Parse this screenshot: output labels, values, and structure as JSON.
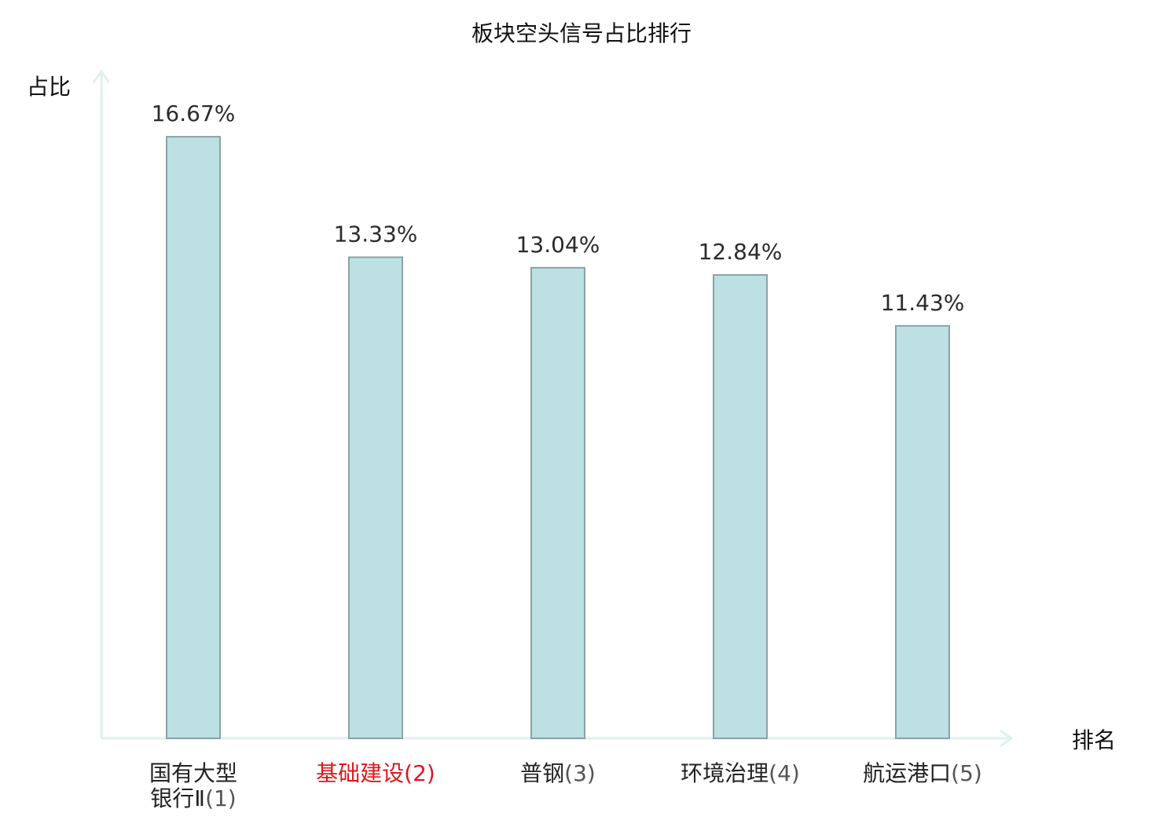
{
  "chart_data": {
    "type": "bar",
    "title": "板块空头信号占比排行",
    "xlabel": "排名",
    "ylabel": "占比",
    "categories": [
      {
        "name_lines": [
          "国有大型",
          "银行Ⅱ"
        ],
        "rank": "(1)",
        "highlight": false
      },
      {
        "name_lines": [
          "基础建设"
        ],
        "rank": "(2)",
        "highlight": true
      },
      {
        "name_lines": [
          "普钢"
        ],
        "rank": "(3)",
        "highlight": false
      },
      {
        "name_lines": [
          "环境治理"
        ],
        "rank": "(4)",
        "highlight": false
      },
      {
        "name_lines": [
          "航运港口"
        ],
        "rank": "(5)",
        "highlight": false
      }
    ],
    "values": [
      16.67,
      13.33,
      13.04,
      12.84,
      11.43
    ],
    "value_labels": [
      "16.67%",
      "13.33%",
      "13.04%",
      "12.84%",
      "11.43%"
    ],
    "ylim": [
      0,
      18.5
    ],
    "grid": false,
    "legend": "none",
    "colors": {
      "bar_fill": "#bde0e2",
      "bar_stroke": "#8aa3a5",
      "axis": "#dff1ef",
      "text": "#222222",
      "rank_text": "#555555",
      "highlight_text": "#e0161c"
    }
  }
}
